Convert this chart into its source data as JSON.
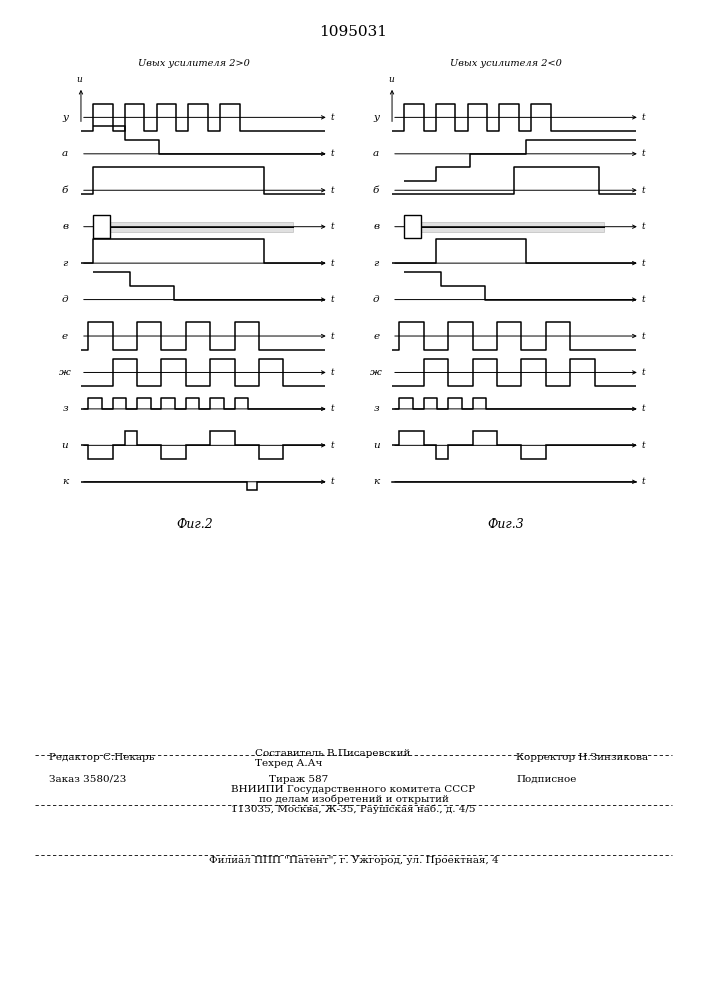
{
  "title": "1095031",
  "fig2_title": "Uвых усилителя 2>0",
  "fig3_title": "Uвых усилителя 2<0",
  "fig2_label": "Фиг.2",
  "fig3_label": "Фиг.3",
  "row_labels_left": [
    "у",
    "а",
    "б",
    "в",
    "г",
    "д",
    "е",
    "ж",
    "з",
    "и",
    "к"
  ],
  "row_labels_right": [
    "у",
    "а",
    "б",
    "в",
    "г",
    "д",
    "е",
    "ж",
    "з",
    "и",
    "к"
  ],
  "editor_line": "Редактор С.Пекарь",
  "sostavitel_line1": "Составитель В.Писаревский",
  "sostavitel_line2": "Техред А.Ач",
  "korrektor_line": "Корректор Н.Зинзикова",
  "zakaz_line": "Заказ 3580/23",
  "tirazh_line": "Тираж 587",
  "podpisnoe_line": "Подписное",
  "vniiipi_line1": "ВНИИПИ Государственного комитета СССР",
  "vniiipi_line2": "по делам изобретений и открытий",
  "vniiipi_line3": "113035, Москва, Ж-35, Раушская наб., д. 4/5",
  "filial_line": "Филиал ППП \"Патент\", г. Ужгород, ул. Проектная, 4"
}
